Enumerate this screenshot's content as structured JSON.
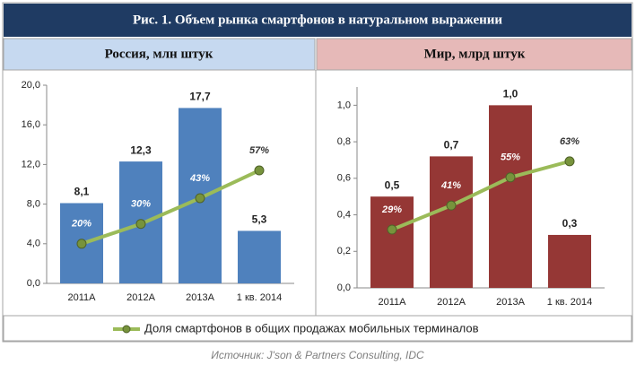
{
  "title": "Рис. 1. Объем рынка смартфонов в натуральном выражении",
  "legend_label": "Доля смартфонов в общих продажах мобильных терминалов",
  "source": "Источник: J'son & Partners Consulting, IDC",
  "chart_data": [
    {
      "type": "bar",
      "subtitle": "Россия, млн штук",
      "categories": [
        "2011A",
        "2012A",
        "2013A",
        "1 кв. 2014"
      ],
      "values": [
        8.1,
        12.3,
        17.7,
        5.3
      ],
      "value_labels": [
        "8,1",
        "12,3",
        "17,7",
        "5,3"
      ],
      "color": "#4f81bd",
      "ylim": [
        0,
        20
      ],
      "yticks": [
        {
          "value": 0,
          "label": "0,0"
        },
        {
          "value": 4,
          "label": "4,0"
        },
        {
          "value": 8,
          "label": "8,0"
        },
        {
          "value": 12,
          "label": "12,0"
        },
        {
          "value": 16,
          "label": "16,0"
        },
        {
          "value": 20,
          "label": "20,0"
        }
      ],
      "y2lim": [
        0,
        100
      ],
      "line": {
        "axis": "y2",
        "color": "#9bbb59",
        "values": [
          20,
          30,
          43,
          57
        ],
        "value_labels": [
          "20%",
          "30%",
          "43%",
          "57%"
        ]
      }
    },
    {
      "type": "bar",
      "subtitle": "Мир, млрд штук",
      "categories": [
        "2011A",
        "2012A",
        "2013A",
        "1 кв. 2014"
      ],
      "values": [
        0.5,
        0.72,
        1.0,
        0.29
      ],
      "value_labels": [
        "0,5",
        "0,7",
        "1,0",
        "0,3"
      ],
      "color": "#953735",
      "ylim": [
        0,
        1.1
      ],
      "yticks": [
        {
          "value": 0,
          "label": "0,0"
        },
        {
          "value": 0.2,
          "label": "0,2"
        },
        {
          "value": 0.4,
          "label": "0,4"
        },
        {
          "value": 0.6,
          "label": "0,6"
        },
        {
          "value": 0.8,
          "label": "0,8"
        },
        {
          "value": 1.0,
          "label": "1,0"
        }
      ],
      "y2lim": [
        0,
        100
      ],
      "line": {
        "axis": "y2",
        "color": "#9bbb59",
        "values": [
          29,
          41,
          55,
          63
        ],
        "value_labels": [
          "29%",
          "41%",
          "55%",
          "63%"
        ]
      }
    }
  ]
}
